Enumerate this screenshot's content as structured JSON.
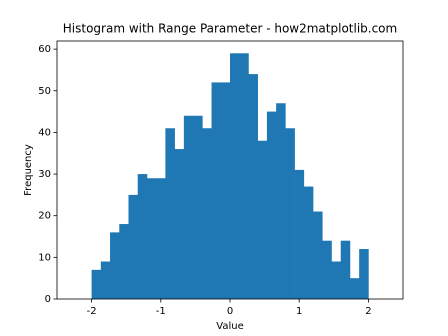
{
  "chart_data": {
    "type": "histogram",
    "title": "Histogram with Range Parameter - how2matplotlib.com",
    "x_label": "Value",
    "y_label": "Frequency",
    "bins": [
      -2,
      -1.8667,
      -1.7333,
      -1.6,
      -1.4667,
      -1.3333,
      -1.2,
      -1.0667,
      -0.9333,
      -0.8,
      -0.6667,
      -0.5333,
      -0.4,
      -0.2667,
      -0.1333,
      0,
      0.1333,
      0.2667,
      0.4,
      0.5333,
      0.6667,
      0.8,
      0.9333,
      1.0667,
      1.2,
      1.3333,
      1.4667,
      1.6,
      1.7333,
      1.8667,
      2
    ],
    "values": [
      7,
      9,
      16,
      18,
      25,
      30,
      29,
      29,
      41,
      36,
      44,
      44,
      41,
      52,
      52,
      59,
      59,
      54,
      38,
      45,
      47,
      41,
      31,
      27,
      21,
      14,
      9,
      14,
      5,
      12
    ],
    "color": "#1f77b4",
    "xlim": [
      -2.5,
      2.5
    ],
    "xticks": [
      -2,
      -1,
      0,
      1,
      2
    ],
    "ylim": [
      0,
      61.95
    ],
    "yticks": [
      0,
      10,
      20,
      30,
      40,
      50,
      60
    ]
  }
}
